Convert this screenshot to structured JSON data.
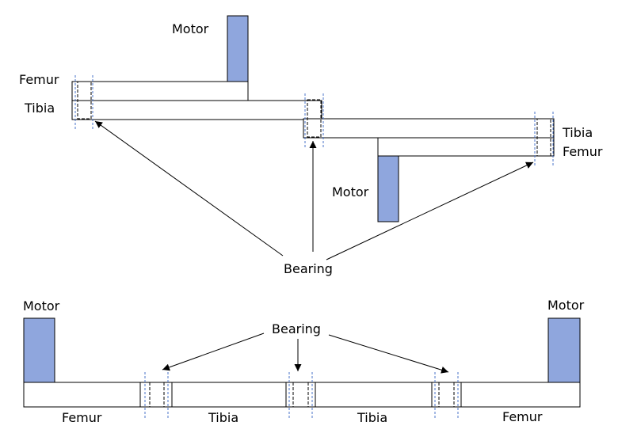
{
  "colors": {
    "motor_fill": "#8FA6DD",
    "bearing_guide": "#4A73C9",
    "outline": "#000000",
    "background": "#ffffff"
  },
  "top_diagram": {
    "motor_upper_label": "Motor",
    "motor_lower_label": "Motor",
    "femur_left_label": "Femur",
    "tibia_left_label": "Tibia",
    "tibia_right_label": "Tibia",
    "femur_right_label": "Femur",
    "bearing_label": "Bearing"
  },
  "bottom_diagram": {
    "motor_left_label": "Motor",
    "motor_right_label": "Motor",
    "bearing_label": "Bearing",
    "segment_labels": [
      "Femur",
      "Tibia",
      "Tibia",
      "Femur"
    ]
  }
}
